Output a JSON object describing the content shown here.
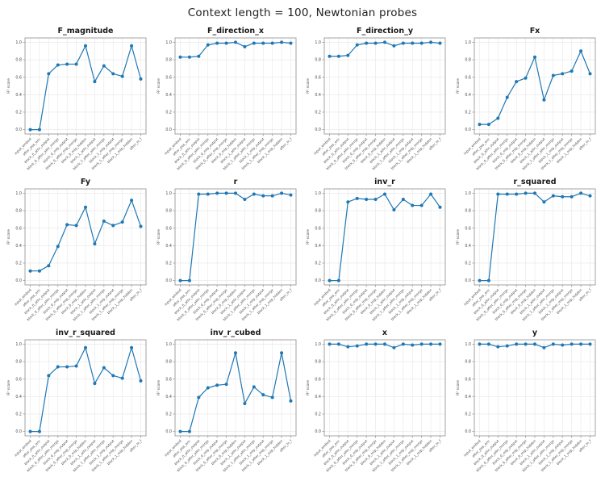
{
  "figure": {
    "title": "Context length = 100, Newtonian probes"
  },
  "axis": {
    "ylabel": "R² score",
    "yticks": [
      "1.0",
      "0.8",
      "0.6",
      "0.4",
      "0.2",
      "0.0"
    ],
    "ytick_values": [
      1.0,
      0.8,
      0.6,
      0.4,
      0.2,
      0.0
    ],
    "ylim": [
      -0.05,
      1.05
    ]
  },
  "style": {
    "line_color": "#1f77b4",
    "grid_color": "#e6e6e6",
    "spine_color": "#9a9a9a",
    "tick_text_color": "#4a4a4a",
    "title_color": "#1a1a1a"
  },
  "chart_data": {
    "type": "line",
    "marker": "circle",
    "grid": true,
    "legend": "none",
    "categories": [
      "input_embed",
      "after_pos_enc",
      "block_0_attn_output",
      "block_0_after_attn_merge",
      "block_0_mlp_output",
      "block_0_after_mlp_merge",
      "block_0_mlp_hidden",
      "block_1_attn_output",
      "block_1_after_attn_merge",
      "block_1_mlp_output",
      "block_1_after_mlp_merge",
      "block_1_mlp_hidden",
      "after_ln_f"
    ],
    "charts": [
      {
        "title": "F_magnitude",
        "values": [
          0.0,
          0.0,
          0.64,
          0.74,
          0.75,
          0.75,
          0.96,
          0.55,
          0.73,
          0.64,
          0.61,
          0.96,
          0.58
        ]
      },
      {
        "title": "F_direction_x",
        "values": [
          0.83,
          0.83,
          0.84,
          0.97,
          0.99,
          0.99,
          1.0,
          0.95,
          0.99,
          0.99,
          0.99,
          1.0,
          0.99
        ]
      },
      {
        "title": "F_direction_y",
        "values": [
          0.84,
          0.84,
          0.85,
          0.97,
          0.99,
          0.99,
          1.0,
          0.96,
          0.99,
          0.99,
          0.99,
          1.0,
          0.99
        ]
      },
      {
        "title": "Fx",
        "values": [
          0.06,
          0.06,
          0.13,
          0.37,
          0.55,
          0.59,
          0.83,
          0.34,
          0.62,
          0.64,
          0.67,
          0.9,
          0.64
        ]
      },
      {
        "title": "Fy",
        "values": [
          0.11,
          0.11,
          0.17,
          0.39,
          0.64,
          0.63,
          0.84,
          0.42,
          0.68,
          0.63,
          0.67,
          0.92,
          0.62
        ]
      },
      {
        "title": "r",
        "values": [
          0.0,
          0.0,
          0.99,
          0.99,
          1.0,
          1.0,
          1.0,
          0.93,
          0.99,
          0.97,
          0.97,
          1.0,
          0.98
        ]
      },
      {
        "title": "inv_r",
        "values": [
          0.0,
          0.0,
          0.9,
          0.94,
          0.93,
          0.93,
          0.99,
          0.81,
          0.93,
          0.86,
          0.86,
          0.99,
          0.84
        ]
      },
      {
        "title": "r_squared",
        "values": [
          0.0,
          0.0,
          0.99,
          0.99,
          0.99,
          1.0,
          1.0,
          0.9,
          0.97,
          0.96,
          0.96,
          1.0,
          0.97
        ]
      },
      {
        "title": "inv_r_squared",
        "values": [
          0.0,
          0.0,
          0.64,
          0.74,
          0.74,
          0.75,
          0.96,
          0.55,
          0.73,
          0.64,
          0.61,
          0.96,
          0.58
        ]
      },
      {
        "title": "inv_r_cubed",
        "values": [
          0.0,
          0.0,
          0.39,
          0.5,
          0.53,
          0.54,
          0.9,
          0.32,
          0.51,
          0.42,
          0.39,
          0.9,
          0.35
        ]
      },
      {
        "title": "x",
        "values": [
          1.0,
          1.0,
          0.97,
          0.98,
          1.0,
          1.0,
          1.0,
          0.96,
          1.0,
          0.99,
          1.0,
          1.0,
          1.0
        ]
      },
      {
        "title": "y",
        "values": [
          1.0,
          1.0,
          0.97,
          0.98,
          1.0,
          1.0,
          1.0,
          0.96,
          1.0,
          0.99,
          1.0,
          1.0,
          1.0
        ]
      }
    ]
  }
}
